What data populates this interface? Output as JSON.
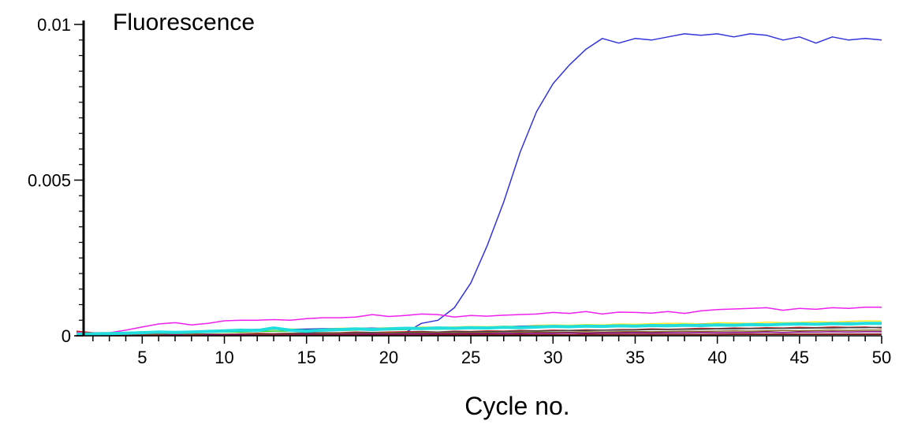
{
  "chart_data": {
    "type": "line",
    "title": "",
    "ylabel": "Fluorescence",
    "xlabel": "Cycle no.",
    "xlim": [
      1,
      50
    ],
    "ylim": [
      0,
      0.01
    ],
    "x_ticks": [
      5,
      10,
      15,
      20,
      25,
      30,
      35,
      40,
      45,
      50
    ],
    "x_tick_labels": [
      "5",
      "10",
      "15",
      "20",
      "25",
      "30",
      "35",
      "40",
      "45",
      "50"
    ],
    "y_ticks": [
      0,
      0.005,
      0.01
    ],
    "y_tick_labels": [
      "0",
      "0.005",
      "0.01"
    ],
    "grid": false,
    "legend": "none",
    "x": [
      1,
      2,
      3,
      4,
      5,
      6,
      7,
      8,
      9,
      10,
      11,
      12,
      13,
      14,
      15,
      16,
      17,
      18,
      19,
      20,
      21,
      22,
      23,
      24,
      25,
      26,
      27,
      28,
      29,
      30,
      31,
      32,
      33,
      34,
      35,
      36,
      37,
      38,
      39,
      40,
      41,
      42,
      43,
      44,
      45,
      46,
      47,
      48,
      49,
      50
    ],
    "series": [
      {
        "color": "#3333dd",
        "width": 1.5,
        "values": [
          3e-05,
          5e-05,
          4e-05,
          6e-05,
          4e-05,
          5e-05,
          3e-05,
          4e-05,
          5e-05,
          4e-05,
          5e-05,
          4e-05,
          5e-05,
          6e-05,
          5e-05,
          6e-05,
          5e-05,
          6e-05,
          8e-05,
          7e-05,
          0.0001,
          0.0004,
          0.0005,
          0.0009,
          0.0017,
          0.0029,
          0.0043,
          0.0059,
          0.0072,
          0.0081,
          0.0087,
          0.0092,
          0.00955,
          0.0094,
          0.00955,
          0.0095,
          0.0096,
          0.0097,
          0.00965,
          0.0097,
          0.0096,
          0.0097,
          0.00965,
          0.0095,
          0.0096,
          0.0094,
          0.0096,
          0.0095,
          0.00955,
          0.0095
        ]
      },
      {
        "color": "#ee22ee",
        "width": 1.5,
        "values": [
          0.00012,
          0.0001,
          0.0001,
          0.00018,
          0.00028,
          0.00038,
          0.00042,
          0.00035,
          0.0004,
          0.00048,
          0.0005,
          0.0005,
          0.00052,
          0.0005,
          0.00055,
          0.00058,
          0.00058,
          0.0006,
          0.00068,
          0.00062,
          0.00065,
          0.0007,
          0.00068,
          0.0006,
          0.00065,
          0.00063,
          0.00066,
          0.00068,
          0.0007,
          0.00075,
          0.00072,
          0.00078,
          0.0007,
          0.00076,
          0.00075,
          0.00073,
          0.00078,
          0.00072,
          0.0008,
          0.00084,
          0.00086,
          0.00088,
          0.0009,
          0.00082,
          0.00088,
          0.00085,
          0.0009,
          0.00088,
          0.00092,
          0.00092
        ]
      },
      {
        "color": "#ffee22",
        "width": 1.5,
        "values": [
          5e-05,
          6e-05,
          5e-05,
          8e-05,
          0.0001,
          0.00012,
          0.00011,
          0.00013,
          0.00012,
          0.00015,
          0.00016,
          0.00018,
          0.0002,
          0.00022,
          0.0002,
          0.00022,
          0.00024,
          0.00025,
          0.00024,
          0.00026,
          0.00025,
          0.00028,
          0.00027,
          0.00028,
          0.0003,
          0.00029,
          0.00031,
          0.0003,
          0.00034,
          0.00035,
          0.00034,
          0.00036,
          0.00035,
          0.00038,
          0.00037,
          0.00039,
          0.0004,
          0.0004,
          0.00038,
          0.00042,
          0.00041,
          0.0004,
          0.00044,
          0.00042,
          0.00043,
          0.00045,
          0.00044,
          0.00046,
          0.00048,
          0.00047
        ]
      },
      {
        "color": "#2244bb",
        "width": 2,
        "values": [
          6e-05,
          7e-05,
          8e-05,
          0.0001,
          0.00012,
          0.00013,
          0.00012,
          0.00014,
          0.00015,
          0.00017,
          0.00018,
          0.0002,
          0.00022,
          0.0002,
          0.00021,
          0.00022,
          0.00022,
          0.00023,
          0.00024,
          0.00022,
          0.00023,
          0.00025,
          0.00026,
          0.00025,
          0.00027,
          0.00026,
          0.00028,
          0.0003,
          0.00031,
          0.00032,
          0.00031,
          0.00033,
          0.00032,
          0.00034,
          0.00033,
          0.00034,
          0.00035,
          0.00034,
          0.00036,
          0.00037,
          0.00036,
          0.00038,
          0.00037,
          0.00038,
          0.0004,
          0.00039,
          0.0004,
          0.00041,
          0.0004,
          0.0004
        ]
      },
      {
        "color": "#22cc22",
        "width": 1.5,
        "values": [
          3e-05,
          4e-05,
          4e-05,
          5e-05,
          6e-05,
          8e-05,
          8e-05,
          0.0001,
          0.00011,
          0.00012,
          0.00012,
          0.00014,
          0.00015,
          0.00015,
          0.00016,
          0.00017,
          0.00017,
          0.00018,
          0.0002,
          0.00019,
          0.0002,
          0.00022,
          0.00021,
          0.00022,
          0.00024,
          0.00023,
          0.00025,
          0.00026,
          0.00027,
          0.00028,
          0.00027,
          0.00029,
          0.00028,
          0.0003,
          0.0003,
          0.00031,
          0.00032,
          0.00031,
          0.00033,
          0.00034,
          0.00033,
          0.00035,
          0.00034,
          0.00036,
          0.00036,
          0.00037,
          0.00038,
          0.00038,
          0.0004,
          0.00039
        ]
      },
      {
        "color": "#cc2222",
        "width": 1.5,
        "values": [
          0.00015,
          0.0001,
          8e-05,
          5e-05,
          6e-05,
          4e-05,
          5e-05,
          6e-05,
          5e-05,
          4e-05,
          6e-05,
          8e-05,
          7e-05,
          8e-05,
          9e-05,
          0.0001,
          0.0001,
          0.00012,
          0.00011,
          0.00012,
          0.00013,
          0.00014,
          0.00012,
          0.00015,
          0.00014,
          0.00016,
          0.00015,
          0.00017,
          0.00016,
          0.00018,
          0.00017,
          0.00019,
          0.00018,
          0.0002,
          0.0002,
          0.00022,
          0.00021,
          0.00022,
          0.00024,
          0.00023,
          0.00025,
          0.00024,
          0.00026,
          0.00025,
          0.00027,
          0.00026,
          0.00028,
          0.00027,
          0.00028,
          0.00025
        ]
      },
      {
        "color": "#444444",
        "width": 1.5,
        "values": [
          2e-05,
          2e-05,
          3e-05,
          2e-05,
          3e-05,
          3e-05,
          4e-05,
          4e-05,
          5e-05,
          5e-05,
          6e-05,
          6e-05,
          7e-05,
          8e-05,
          8e-05,
          9e-05,
          9e-05,
          0.0001,
          0.00011,
          0.0001,
          0.00011,
          0.00012,
          0.00012,
          0.00013,
          0.00013,
          0.00014,
          0.00014,
          0.00015,
          0.00016,
          0.00016,
          0.00017,
          0.00017,
          0.00018,
          0.00018,
          0.00019,
          0.0002,
          0.0002,
          0.00021,
          0.00021,
          0.00022,
          0.00022,
          0.00023,
          0.00023,
          0.00024,
          0.00024,
          0.00025,
          0.00025,
          0.00026,
          0.00026,
          0.00027
        ]
      },
      {
        "color": "#886622",
        "width": 1.5,
        "values": [
          2e-05,
          3e-05,
          2e-05,
          3e-05,
          4e-05,
          3e-05,
          4e-05,
          5e-05,
          4e-05,
          5e-05,
          6e-05,
          5e-05,
          6e-05,
          7e-05,
          6e-05,
          7e-05,
          8e-05,
          7e-05,
          8e-05,
          9e-05,
          8e-05,
          9e-05,
          0.0001,
          9e-05,
          0.0001,
          0.00011,
          0.0001,
          0.00011,
          0.00012,
          0.00011,
          0.00012,
          0.00013,
          0.00012,
          0.00013,
          0.00014,
          0.00013,
          0.00014,
          0.00015,
          0.00014,
          0.00015,
          0.00016,
          0.00015,
          0.00016,
          0.00017,
          0.00016,
          0.00017,
          0.00018,
          0.00017,
          0.00018,
          0.00018
        ]
      },
      {
        "color": "#880088",
        "width": 1.5,
        "values": [
          1e-05,
          1e-05,
          2e-05,
          1e-05,
          2e-05,
          2e-05,
          3e-05,
          2e-05,
          3e-05,
          3e-05,
          4e-05,
          3e-05,
          4e-05,
          4e-05,
          5e-05,
          4e-05,
          5e-05,
          5e-05,
          6e-05,
          5e-05,
          6e-05,
          6e-05,
          7e-05,
          6e-05,
          7e-05,
          7e-05,
          8e-05,
          7e-05,
          8e-05,
          8e-05,
          9e-05,
          8e-05,
          9e-05,
          9e-05,
          0.0001,
          9e-05,
          0.0001,
          0.0001,
          0.00011,
          0.0001,
          0.00011,
          0.00011,
          0.00012,
          0.00011,
          0.00012,
          0.00012,
          0.00013,
          0.00012,
          0.00013,
          0.00013
        ]
      },
      {
        "color": "#882222",
        "width": 2,
        "values": [
          1e-05,
          1e-05,
          1e-05,
          1e-05,
          1e-05,
          1e-05,
          1e-05,
          1e-05,
          1e-05,
          1e-05,
          1e-05,
          2e-05,
          2e-05,
          2e-05,
          2e-05,
          2e-05,
          2e-05,
          2e-05,
          2e-05,
          2e-05,
          2e-05,
          2e-05,
          3e-05,
          3e-05,
          3e-05,
          3e-05,
          3e-05,
          3e-05,
          3e-05,
          3e-05,
          3e-05,
          4e-05,
          4e-05,
          4e-05,
          4e-05,
          4e-05,
          4e-05,
          4e-05,
          4e-05,
          4e-05,
          5e-05,
          5e-05,
          5e-05,
          5e-05,
          5e-05,
          5e-05,
          5e-05,
          5e-05,
          5e-05,
          5e-05
        ]
      },
      {
        "color": "#22dddd",
        "width": 4,
        "values": [
          5e-05,
          6e-05,
          7e-05,
          8e-05,
          0.0001,
          0.00012,
          0.00011,
          0.00012,
          0.00014,
          0.00016,
          0.00018,
          0.00017,
          0.00025,
          0.00018,
          0.00015,
          0.00018,
          0.0002,
          0.00022,
          0.0002,
          0.00022,
          0.00024,
          0.00023,
          0.00025,
          0.00024,
          0.00026,
          0.00025,
          0.00027,
          0.00026,
          0.00028,
          0.0003,
          0.00029,
          0.00031,
          0.0003,
          0.00032,
          0.00031,
          0.00033,
          0.00032,
          0.00034,
          0.00033,
          0.00035,
          0.00034,
          0.00036,
          0.00035,
          0.00037,
          0.00038,
          0.00037,
          0.00039,
          0.00038,
          0.0004,
          0.0004
        ]
      }
    ]
  }
}
